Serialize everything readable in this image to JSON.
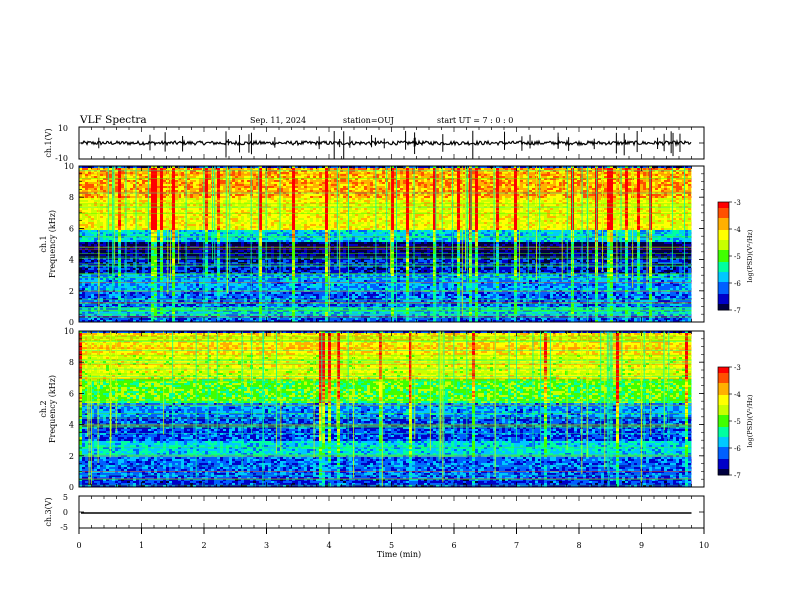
{
  "header": {
    "title": "VLF Spectra",
    "date": "Sep. 11, 2024",
    "station": "station=OUJ",
    "start": "start UT =  7 : 0 : 0"
  },
  "chart_data": [
    {
      "type": "line",
      "panel": "ch1-waveform",
      "ylabel": "ch.1(V)",
      "ylim": [
        -10,
        10
      ],
      "yticks": [
        "10",
        "-10"
      ],
      "xlim": [
        0,
        10
      ],
      "baseline_mean": 0,
      "noise_amplitude": 1.2,
      "spike_count": 40,
      "data_end_x": 9.8
    },
    {
      "type": "heatmap",
      "panel": "ch1-spectrogram",
      "ylabel": "ch.1",
      "ylabel2": "Frequency  (kHz)",
      "xlim": [
        0,
        10
      ],
      "ylim": [
        0,
        10
      ],
      "yticks": [
        "0",
        "2",
        "4",
        "6",
        "8",
        "10"
      ],
      "colorbar": {
        "label": "log(PSD)(V²/Hz)",
        "range": [
          -7,
          -3
        ],
        "ticks": [
          "-3",
          "-4",
          "-5",
          "-6",
          "-7"
        ]
      },
      "bands": [
        {
          "f": [
            0,
            0.4
          ],
          "level": -6.3
        },
        {
          "f": [
            0.4,
            1.0
          ],
          "level": -5.8
        },
        {
          "f": [
            1.0,
            2.0
          ],
          "level": -6.2
        },
        {
          "f": [
            2.0,
            3.2
          ],
          "level": -6.0
        },
        {
          "f": [
            3.2,
            4.2
          ],
          "level": -6.5
        },
        {
          "f": [
            4.2,
            5.2
          ],
          "level": -6.9
        },
        {
          "f": [
            5.2,
            6.0
          ],
          "level": -5.8
        },
        {
          "f": [
            6.0,
            8.0
          ],
          "level": -4.3
        },
        {
          "f": [
            8.0,
            10.0
          ],
          "level": -3.8
        }
      ]
    },
    {
      "type": "heatmap",
      "panel": "ch2-spectrogram",
      "ylabel": "ch.2",
      "ylabel2": "Frequency  (kHz)",
      "xlim": [
        0,
        10
      ],
      "ylim": [
        0,
        10
      ],
      "yticks": [
        "0",
        "2",
        "4",
        "6",
        "8",
        "10"
      ],
      "colorbar": {
        "label": "log(PSD)(V²/Hz)",
        "range": [
          -7,
          -3
        ],
        "ticks": [
          "-3",
          "-4",
          "-5",
          "-6",
          "-7"
        ]
      },
      "bands": [
        {
          "f": [
            0,
            0.6
          ],
          "level": -6.4
        },
        {
          "f": [
            0.6,
            2.0
          ],
          "level": -6.2
        },
        {
          "f": [
            2.0,
            3.0
          ],
          "level": -5.7
        },
        {
          "f": [
            3.0,
            4.5
          ],
          "level": -6.3
        },
        {
          "f": [
            4.5,
            5.5
          ],
          "level": -6.0
        },
        {
          "f": [
            5.5,
            7.0
          ],
          "level": -5.0
        },
        {
          "f": [
            7.0,
            8.5
          ],
          "level": -4.4
        },
        {
          "f": [
            8.5,
            10.0
          ],
          "level": -4.1
        }
      ]
    },
    {
      "type": "line",
      "panel": "ch3-waveform",
      "ylabel": "ch.3(V)",
      "ylim": [
        -5,
        5
      ],
      "yticks": [
        "5",
        "0",
        "-5"
      ],
      "xlim": [
        0,
        10
      ],
      "constant_value": -0.3,
      "data_end_x": 9.8
    }
  ],
  "xaxis": {
    "label": "Time  (min)",
    "ticks": [
      "0",
      "1",
      "2",
      "3",
      "4",
      "5",
      "6",
      "7",
      "8",
      "9",
      "10"
    ]
  },
  "colors": {
    "colormap": [
      "#000040",
      "#0000c8",
      "#0060ff",
      "#00c8ff",
      "#00ffa0",
      "#40ff00",
      "#c8ff00",
      "#ffff00",
      "#ffb000",
      "#ff5000",
      "#ff0000"
    ],
    "trace": "#000000"
  }
}
